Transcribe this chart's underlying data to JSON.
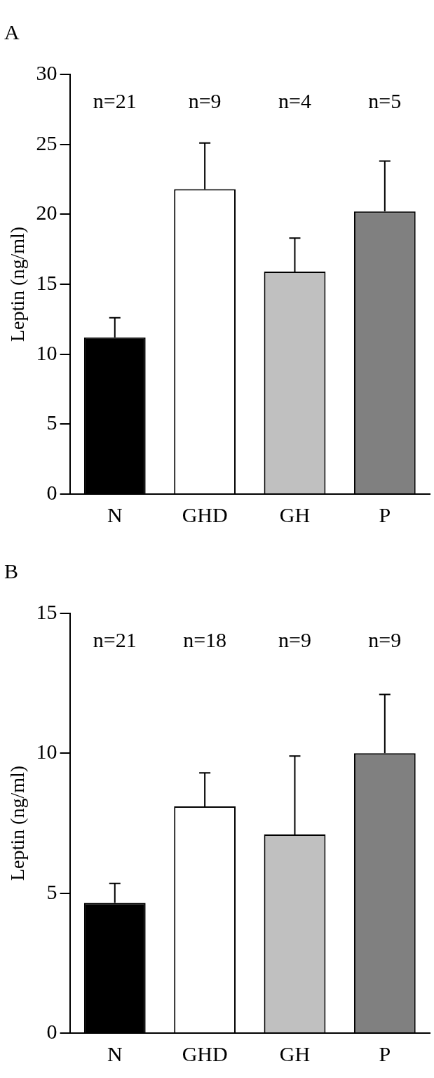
{
  "chart_data": [
    {
      "type": "bar",
      "title": "A",
      "ylabel": "Leptin (ng/ml)",
      "categories": [
        "N",
        "GHD",
        "GH",
        "P"
      ],
      "values": [
        11.2,
        21.8,
        15.9,
        20.2
      ],
      "colors": [
        "#000000",
        "#ffffff",
        "#c0c0c0",
        "#808080"
      ],
      "errors": [
        [
          11.2,
          12.6
        ],
        [
          21.8,
          25.1
        ],
        [
          15.9,
          18.3
        ],
        [
          20.2,
          23.8
        ]
      ],
      "ylim": [
        0,
        30
      ],
      "yticks": [
        0,
        5,
        10,
        15,
        20,
        25,
        30
      ],
      "grid": false,
      "legend": false,
      "annotations": [
        "n=21",
        "n=9",
        "n=4",
        "n=5"
      ]
    },
    {
      "type": "bar",
      "title": "B",
      "ylabel": "Leptin (ng/ml)",
      "categories": [
        "N",
        "GHD",
        "GH",
        "P"
      ],
      "values": [
        4.65,
        8.1,
        7.1,
        10.0
      ],
      "colors": [
        "#000000",
        "#ffffff",
        "#c0c0c0",
        "#808080"
      ],
      "errors": [
        [
          4.65,
          5.35
        ],
        [
          8.1,
          9.3
        ],
        [
          7.1,
          9.9
        ],
        [
          10.0,
          12.1
        ]
      ],
      "ylim": [
        0,
        15
      ],
      "yticks": [
        0,
        5,
        10,
        15
      ],
      "grid": false,
      "legend": false,
      "annotations": [
        "n=21",
        "n=18",
        "n=9",
        "n=9"
      ]
    }
  ]
}
